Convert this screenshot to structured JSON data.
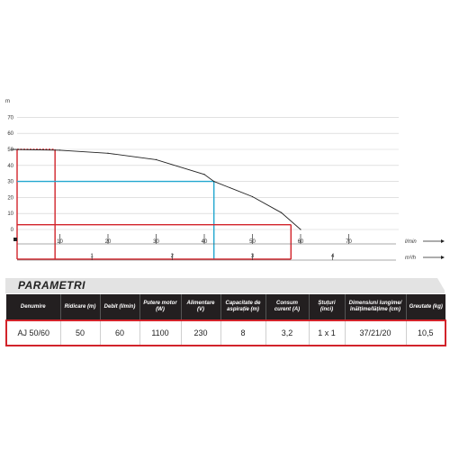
{
  "chart_data": {
    "type": "line",
    "ylabel": "m",
    "y_ticks": [
      0,
      10,
      20,
      30,
      40,
      50,
      60,
      70
    ],
    "ylim": [
      0,
      75
    ],
    "x_ticks_lmin": [
      10,
      20,
      30,
      40,
      50,
      60,
      70
    ],
    "xlim_lmin": [
      0,
      82
    ],
    "x_unit_lmin": "l/min",
    "x_ticks_m3h": [
      1,
      2,
      3,
      4
    ],
    "x_unit_m3h": "m³/h",
    "grid": true,
    "series": [
      {
        "x": [
          0,
          10,
          20,
          30,
          40,
          42,
          50,
          56,
          60
        ],
        "y": [
          50,
          49.5,
          47.6,
          43.6,
          34.4,
          30,
          20.5,
          10.5,
          0
        ]
      }
    ],
    "markers": [
      {
        "kind": "dashed-level",
        "color": "#d2232a",
        "y": 50,
        "x_to": 9
      },
      {
        "kind": "guide",
        "color": "#d2232a",
        "x": 9,
        "y": 50
      },
      {
        "kind": "guide",
        "color": "#22a7cf",
        "x": 42,
        "y": 30
      },
      {
        "kind": "guide",
        "color": "#d2232a",
        "x": 58,
        "y": 3
      }
    ]
  },
  "params": {
    "title": "PARAMETRI",
    "headers": [
      "Denumire",
      "Ridicare (m)",
      "Debit (l/min)",
      "Putere motor (W)",
      "Alimentare (V)",
      "Capacitate de aspirație (m)",
      "Consum curent (A)",
      "Ștuțuri (inci)",
      "Dimensiuni lungime/ înălțime/lățime (cm)",
      "Greutate (kg)"
    ],
    "row": [
      "AJ 50/60",
      "50",
      "60",
      "1100",
      "230",
      "8",
      "3,2",
      "1 x 1",
      "37/21/20",
      "10,5"
    ]
  },
  "colors": {
    "red": "#d2232a",
    "blue": "#22a7cf",
    "dark": "#231f20"
  }
}
